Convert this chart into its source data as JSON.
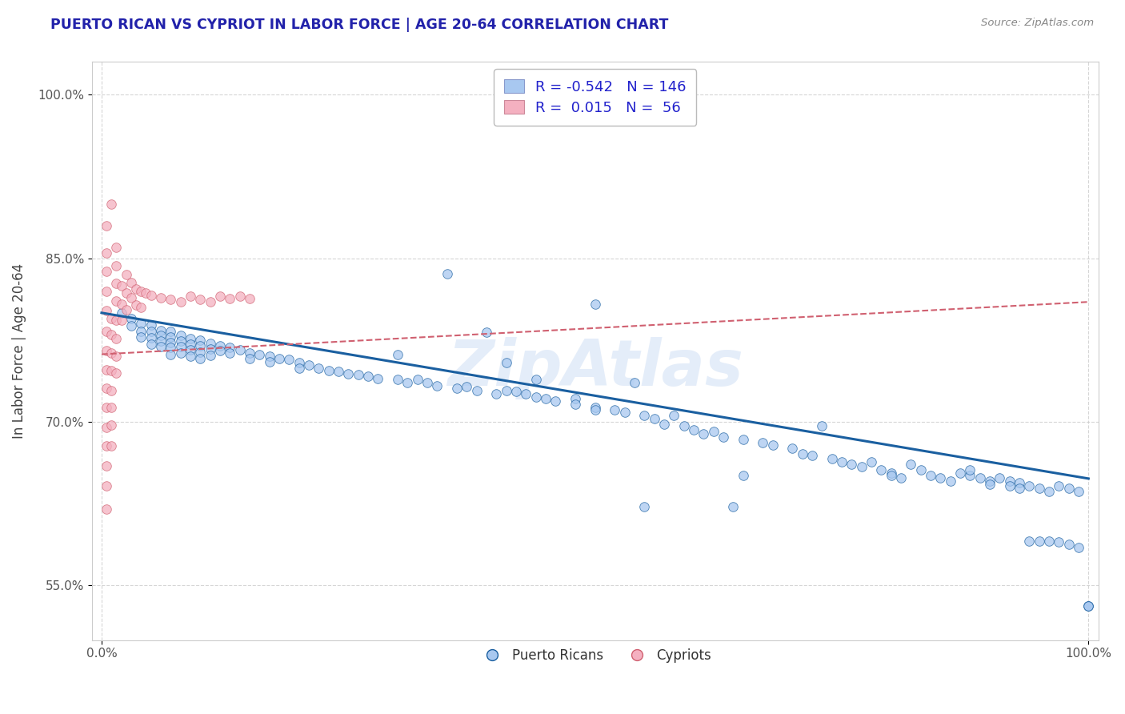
{
  "title": "PUERTO RICAN VS CYPRIOT IN LABOR FORCE | AGE 20-64 CORRELATION CHART",
  "source_text": "Source: ZipAtlas.com",
  "ylabel": "In Labor Force | Age 20-64",
  "xlim": [
    -0.01,
    1.01
  ],
  "ylim": [
    0.5,
    1.03
  ],
  "x_tick_labels": [
    "0.0%",
    "100.0%"
  ],
  "x_tick_pos": [
    0.0,
    1.0
  ],
  "y_tick_labels": [
    "55.0%",
    "70.0%",
    "85.0%",
    "100.0%"
  ],
  "y_tick_values": [
    0.55,
    0.7,
    0.85,
    1.0
  ],
  "legend_r1": "-0.542",
  "legend_n1": "146",
  "legend_r2": "0.015",
  "legend_n2": "56",
  "blue_color": "#a8c8f0",
  "pink_color": "#f4b0c0",
  "line_blue": "#1a5fa0",
  "line_pink": "#d06070",
  "watermark": "ZipAtlas",
  "grid_color": "#cccccc",
  "title_color": "#2222aa",
  "legend_text_color": "#2222cc",
  "blue_scatter": [
    [
      0.02,
      0.8
    ],
    [
      0.03,
      0.795
    ],
    [
      0.03,
      0.788
    ],
    [
      0.04,
      0.79
    ],
    [
      0.04,
      0.783
    ],
    [
      0.04,
      0.778
    ],
    [
      0.05,
      0.789
    ],
    [
      0.05,
      0.783
    ],
    [
      0.05,
      0.777
    ],
    [
      0.05,
      0.771
    ],
    [
      0.06,
      0.784
    ],
    [
      0.06,
      0.779
    ],
    [
      0.06,
      0.774
    ],
    [
      0.06,
      0.769
    ],
    [
      0.07,
      0.783
    ],
    [
      0.07,
      0.778
    ],
    [
      0.07,
      0.773
    ],
    [
      0.07,
      0.768
    ],
    [
      0.07,
      0.762
    ],
    [
      0.08,
      0.779
    ],
    [
      0.08,
      0.774
    ],
    [
      0.08,
      0.769
    ],
    [
      0.08,
      0.763
    ],
    [
      0.09,
      0.776
    ],
    [
      0.09,
      0.771
    ],
    [
      0.09,
      0.766
    ],
    [
      0.09,
      0.76
    ],
    [
      0.1,
      0.775
    ],
    [
      0.1,
      0.77
    ],
    [
      0.1,
      0.764
    ],
    [
      0.1,
      0.758
    ],
    [
      0.11,
      0.772
    ],
    [
      0.11,
      0.767
    ],
    [
      0.11,
      0.761
    ],
    [
      0.12,
      0.77
    ],
    [
      0.12,
      0.765
    ],
    [
      0.13,
      0.768
    ],
    [
      0.13,
      0.763
    ],
    [
      0.14,
      0.766
    ],
    [
      0.15,
      0.763
    ],
    [
      0.15,
      0.758
    ],
    [
      0.16,
      0.762
    ],
    [
      0.17,
      0.76
    ],
    [
      0.17,
      0.755
    ],
    [
      0.18,
      0.758
    ],
    [
      0.19,
      0.757
    ],
    [
      0.2,
      0.754
    ],
    [
      0.2,
      0.749
    ],
    [
      0.21,
      0.752
    ],
    [
      0.22,
      0.749
    ],
    [
      0.23,
      0.747
    ],
    [
      0.24,
      0.746
    ],
    [
      0.25,
      0.744
    ],
    [
      0.26,
      0.743
    ],
    [
      0.27,
      0.742
    ],
    [
      0.28,
      0.74
    ],
    [
      0.3,
      0.762
    ],
    [
      0.3,
      0.739
    ],
    [
      0.31,
      0.736
    ],
    [
      0.32,
      0.739
    ],
    [
      0.33,
      0.736
    ],
    [
      0.34,
      0.733
    ],
    [
      0.35,
      0.836
    ],
    [
      0.36,
      0.731
    ],
    [
      0.37,
      0.732
    ],
    [
      0.38,
      0.729
    ],
    [
      0.39,
      0.782
    ],
    [
      0.4,
      0.726
    ],
    [
      0.41,
      0.754
    ],
    [
      0.41,
      0.729
    ],
    [
      0.42,
      0.728
    ],
    [
      0.43,
      0.726
    ],
    [
      0.44,
      0.739
    ],
    [
      0.44,
      0.723
    ],
    [
      0.45,
      0.721
    ],
    [
      0.46,
      0.719
    ],
    [
      0.48,
      0.721
    ],
    [
      0.48,
      0.716
    ],
    [
      0.5,
      0.808
    ],
    [
      0.5,
      0.713
    ],
    [
      0.5,
      0.711
    ],
    [
      0.52,
      0.711
    ],
    [
      0.53,
      0.709
    ],
    [
      0.54,
      0.736
    ],
    [
      0.55,
      0.706
    ],
    [
      0.55,
      0.622
    ],
    [
      0.56,
      0.703
    ],
    [
      0.57,
      0.698
    ],
    [
      0.58,
      0.706
    ],
    [
      0.59,
      0.696
    ],
    [
      0.6,
      0.693
    ],
    [
      0.61,
      0.689
    ],
    [
      0.62,
      0.691
    ],
    [
      0.63,
      0.686
    ],
    [
      0.64,
      0.622
    ],
    [
      0.65,
      0.651
    ],
    [
      0.65,
      0.684
    ],
    [
      0.67,
      0.681
    ],
    [
      0.68,
      0.679
    ],
    [
      0.7,
      0.676
    ],
    [
      0.71,
      0.671
    ],
    [
      0.72,
      0.669
    ],
    [
      0.73,
      0.696
    ],
    [
      0.74,
      0.666
    ],
    [
      0.75,
      0.663
    ],
    [
      0.76,
      0.661
    ],
    [
      0.77,
      0.659
    ],
    [
      0.78,
      0.663
    ],
    [
      0.79,
      0.656
    ],
    [
      0.8,
      0.653
    ],
    [
      0.8,
      0.651
    ],
    [
      0.81,
      0.649
    ],
    [
      0.82,
      0.661
    ],
    [
      0.83,
      0.656
    ],
    [
      0.84,
      0.651
    ],
    [
      0.85,
      0.649
    ],
    [
      0.86,
      0.646
    ],
    [
      0.87,
      0.653
    ],
    [
      0.88,
      0.651
    ],
    [
      0.88,
      0.656
    ],
    [
      0.89,
      0.649
    ],
    [
      0.9,
      0.646
    ],
    [
      0.9,
      0.643
    ],
    [
      0.91,
      0.649
    ],
    [
      0.92,
      0.646
    ],
    [
      0.92,
      0.641
    ],
    [
      0.93,
      0.644
    ],
    [
      0.93,
      0.639
    ],
    [
      0.94,
      0.591
    ],
    [
      0.94,
      0.641
    ],
    [
      0.95,
      0.591
    ],
    [
      0.95,
      0.639
    ],
    [
      0.96,
      0.591
    ],
    [
      0.96,
      0.636
    ],
    [
      0.97,
      0.641
    ],
    [
      0.97,
      0.59
    ],
    [
      0.98,
      0.639
    ],
    [
      0.98,
      0.588
    ],
    [
      0.99,
      0.636
    ],
    [
      0.99,
      0.585
    ],
    [
      1.0,
      0.531
    ],
    [
      1.0,
      0.531
    ],
    [
      1.0,
      0.531
    ]
  ],
  "pink_scatter": [
    [
      0.005,
      0.88
    ],
    [
      0.005,
      0.855
    ],
    [
      0.005,
      0.838
    ],
    [
      0.005,
      0.82
    ],
    [
      0.005,
      0.802
    ],
    [
      0.005,
      0.783
    ],
    [
      0.005,
      0.765
    ],
    [
      0.005,
      0.748
    ],
    [
      0.005,
      0.731
    ],
    [
      0.005,
      0.713
    ],
    [
      0.005,
      0.695
    ],
    [
      0.005,
      0.678
    ],
    [
      0.005,
      0.66
    ],
    [
      0.005,
      0.641
    ],
    [
      0.005,
      0.62
    ],
    [
      0.01,
      0.9
    ],
    [
      0.01,
      0.795
    ],
    [
      0.01,
      0.78
    ],
    [
      0.01,
      0.763
    ],
    [
      0.01,
      0.747
    ],
    [
      0.01,
      0.729
    ],
    [
      0.01,
      0.713
    ],
    [
      0.01,
      0.697
    ],
    [
      0.01,
      0.678
    ],
    [
      0.015,
      0.86
    ],
    [
      0.015,
      0.843
    ],
    [
      0.015,
      0.827
    ],
    [
      0.015,
      0.811
    ],
    [
      0.015,
      0.793
    ],
    [
      0.015,
      0.776
    ],
    [
      0.015,
      0.76
    ],
    [
      0.015,
      0.745
    ],
    [
      0.02,
      0.825
    ],
    [
      0.02,
      0.808
    ],
    [
      0.02,
      0.793
    ],
    [
      0.025,
      0.835
    ],
    [
      0.025,
      0.818
    ],
    [
      0.025,
      0.803
    ],
    [
      0.03,
      0.828
    ],
    [
      0.03,
      0.814
    ],
    [
      0.035,
      0.822
    ],
    [
      0.035,
      0.807
    ],
    [
      0.04,
      0.82
    ],
    [
      0.04,
      0.805
    ],
    [
      0.045,
      0.818
    ],
    [
      0.05,
      0.816
    ],
    [
      0.06,
      0.814
    ],
    [
      0.07,
      0.812
    ],
    [
      0.08,
      0.81
    ],
    [
      0.09,
      0.815
    ],
    [
      0.1,
      0.812
    ],
    [
      0.11,
      0.81
    ],
    [
      0.12,
      0.815
    ],
    [
      0.13,
      0.813
    ],
    [
      0.14,
      0.815
    ],
    [
      0.15,
      0.813
    ]
  ],
  "blue_line_x": [
    0.0,
    1.0
  ],
  "blue_line_y": [
    0.8,
    0.648
  ],
  "pink_line_x": [
    0.0,
    1.0
  ],
  "pink_line_y": [
    0.762,
    0.81
  ]
}
